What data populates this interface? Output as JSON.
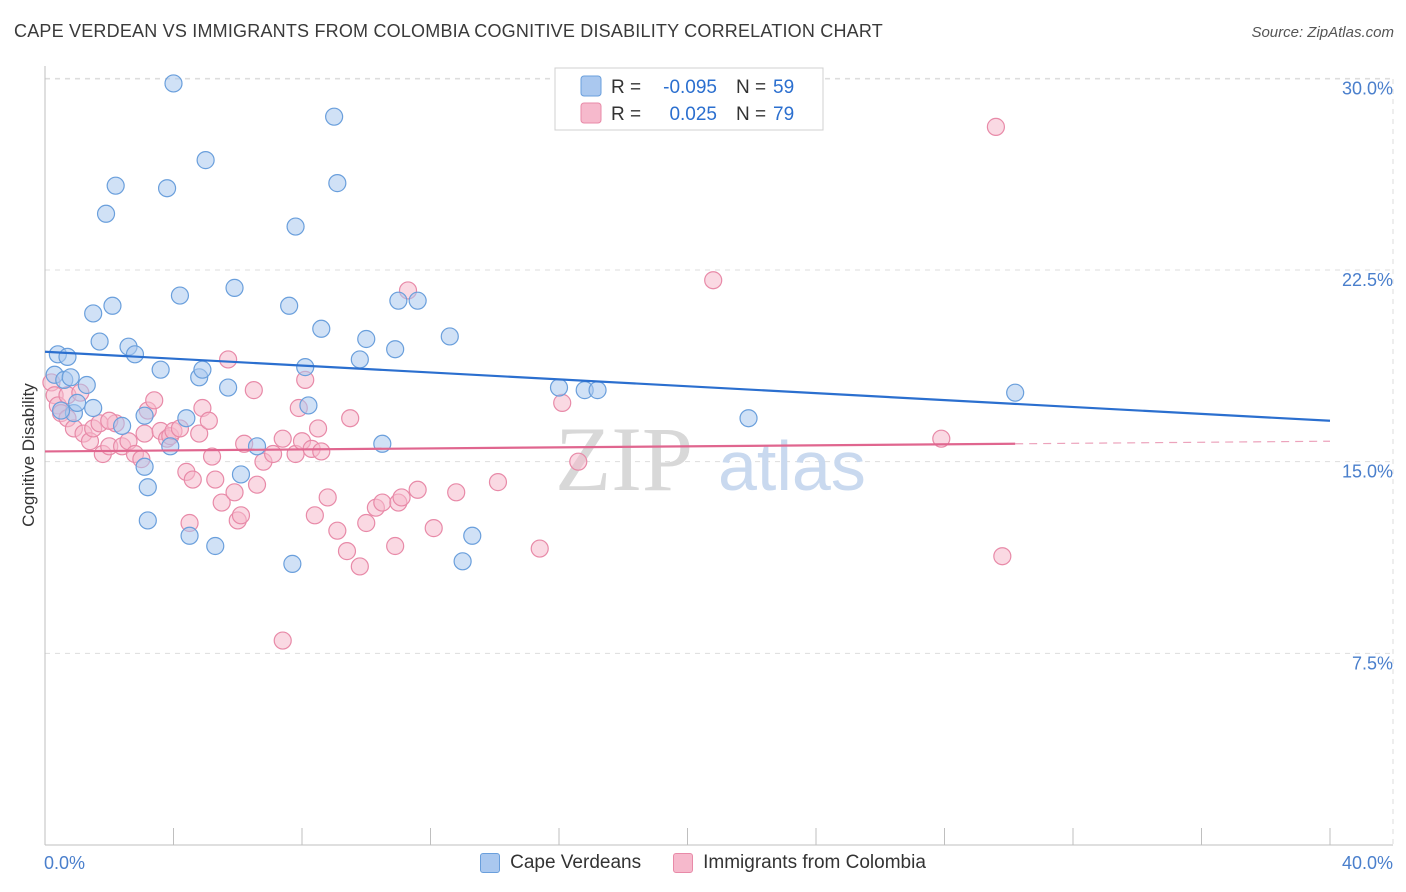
{
  "title": "CAPE VERDEAN VS IMMIGRANTS FROM COLOMBIA COGNITIVE DISABILITY CORRELATION CHART",
  "source": "Source: ZipAtlas.com",
  "colors": {
    "blue_fill": "#aac8ef",
    "blue_stroke": "#6a9fdc",
    "blue_line": "#2b6fcf",
    "pink_fill": "#f6b9cc",
    "pink_stroke": "#e88aa8",
    "pink_line": "#e0668f",
    "tick_label": "#4a7fcc",
    "grid": "#dddddd"
  },
  "legend": {
    "rows": [
      {
        "r_label": "R =",
        "r_value": "-0.095",
        "n_label": "N =",
        "n_value": "59"
      },
      {
        "r_label": "R =",
        "r_value": "0.025",
        "n_label": "N =",
        "n_value": "79"
      }
    ]
  },
  "bottom_legend": {
    "series1": "Cape Verdeans",
    "series2": "Immigrants from Colombia"
  },
  "watermark": {
    "zip": "ZIP",
    "atlas": "atlas"
  },
  "chart_data": {
    "type": "scatter",
    "title": "CAPE VERDEAN VS IMMIGRANTS FROM COLOMBIA COGNITIVE DISABILITY CORRELATION CHART",
    "xlabel": "",
    "ylabel": "Cognitive Disability",
    "xlim": [
      0,
      40
    ],
    "ylim": [
      0,
      31
    ],
    "x_tick_labels": [
      "0.0%",
      "40.0%"
    ],
    "y_ticks": [
      7.5,
      15.0,
      22.5,
      30.0
    ],
    "y_tick_labels": [
      "7.5%",
      "15.0%",
      "22.5%",
      "30.0%"
    ],
    "series": [
      {
        "name": "Cape Verdeans",
        "r": -0.095,
        "n": 59,
        "trend": {
          "x": [
            0,
            40
          ],
          "y": [
            19.3,
            16.6
          ]
        },
        "points": [
          [
            0.3,
            18.4
          ],
          [
            0.4,
            19.2
          ],
          [
            0.6,
            18.2
          ],
          [
            0.7,
            19.1
          ],
          [
            0.8,
            18.3
          ],
          [
            0.9,
            16.9
          ],
          [
            1.0,
            17.3
          ],
          [
            1.3,
            18.0
          ],
          [
            1.5,
            17.1
          ],
          [
            1.5,
            20.8
          ],
          [
            1.7,
            19.7
          ],
          [
            1.9,
            24.7
          ],
          [
            2.1,
            21.1
          ],
          [
            2.2,
            25.8
          ],
          [
            2.4,
            16.4
          ],
          [
            2.6,
            19.5
          ],
          [
            2.8,
            19.2
          ],
          [
            3.1,
            16.8
          ],
          [
            3.2,
            14.0
          ],
          [
            3.2,
            12.7
          ],
          [
            3.6,
            18.6
          ],
          [
            3.8,
            25.7
          ],
          [
            3.9,
            15.6
          ],
          [
            4.0,
            29.8
          ],
          [
            4.2,
            21.5
          ],
          [
            4.4,
            16.7
          ],
          [
            4.5,
            12.1
          ],
          [
            4.8,
            18.3
          ],
          [
            4.9,
            18.6
          ],
          [
            5.0,
            26.8
          ],
          [
            5.3,
            11.7
          ],
          [
            5.7,
            17.9
          ],
          [
            5.9,
            21.8
          ],
          [
            6.1,
            14.5
          ],
          [
            6.6,
            15.6
          ],
          [
            7.6,
            21.1
          ],
          [
            7.7,
            11.0
          ],
          [
            7.8,
            24.2
          ],
          [
            8.1,
            18.7
          ],
          [
            8.2,
            17.2
          ],
          [
            8.6,
            20.2
          ],
          [
            9.0,
            28.5
          ],
          [
            9.1,
            25.9
          ],
          [
            9.8,
            19.0
          ],
          [
            10.0,
            19.8
          ],
          [
            10.5,
            15.7
          ],
          [
            10.9,
            19.4
          ],
          [
            11.0,
            21.3
          ],
          [
            11.6,
            21.3
          ],
          [
            12.6,
            19.9
          ],
          [
            13.0,
            11.1
          ],
          [
            13.3,
            12.1
          ],
          [
            16.0,
            17.9
          ],
          [
            16.8,
            17.8
          ],
          [
            17.2,
            17.8
          ],
          [
            21.9,
            16.7
          ],
          [
            30.2,
            17.7
          ],
          [
            0.5,
            17.0
          ],
          [
            3.1,
            14.8
          ]
        ]
      },
      {
        "name": "Immigrants from Colombia",
        "r": 0.025,
        "n": 79,
        "trend": {
          "x": [
            0,
            30.2
          ],
          "y": [
            15.4,
            15.7
          ]
        },
        "trend_dashed": {
          "x": [
            30.2,
            40
          ],
          "y": [
            15.7,
            15.8
          ]
        },
        "points": [
          [
            0.2,
            18.1
          ],
          [
            0.3,
            17.6
          ],
          [
            0.4,
            17.2
          ],
          [
            0.5,
            16.9
          ],
          [
            0.7,
            17.6
          ],
          [
            0.7,
            16.7
          ],
          [
            0.9,
            16.3
          ],
          [
            1.1,
            17.7
          ],
          [
            1.2,
            16.1
          ],
          [
            1.4,
            15.8
          ],
          [
            1.5,
            16.3
          ],
          [
            1.7,
            16.5
          ],
          [
            1.8,
            15.3
          ],
          [
            2.0,
            15.6
          ],
          [
            2.2,
            16.5
          ],
          [
            2.4,
            15.6
          ],
          [
            2.6,
            15.8
          ],
          [
            2.8,
            15.3
          ],
          [
            3.0,
            15.1
          ],
          [
            3.1,
            16.1
          ],
          [
            3.2,
            17.0
          ],
          [
            3.4,
            17.4
          ],
          [
            3.6,
            16.2
          ],
          [
            3.8,
            15.9
          ],
          [
            3.9,
            16.0
          ],
          [
            4.0,
            16.2
          ],
          [
            4.2,
            16.3
          ],
          [
            4.4,
            14.6
          ],
          [
            4.5,
            12.6
          ],
          [
            4.6,
            14.3
          ],
          [
            4.8,
            16.1
          ],
          [
            4.9,
            17.1
          ],
          [
            5.1,
            16.6
          ],
          [
            5.2,
            15.2
          ],
          [
            5.3,
            14.3
          ],
          [
            5.5,
            13.4
          ],
          [
            5.7,
            19.0
          ],
          [
            5.9,
            13.8
          ],
          [
            6.0,
            12.7
          ],
          [
            6.1,
            12.9
          ],
          [
            6.2,
            15.7
          ],
          [
            6.5,
            17.8
          ],
          [
            6.6,
            14.1
          ],
          [
            6.8,
            15.0
          ],
          [
            7.1,
            15.3
          ],
          [
            7.4,
            15.9
          ],
          [
            7.4,
            8.0
          ],
          [
            7.8,
            15.3
          ],
          [
            7.9,
            17.1
          ],
          [
            8.0,
            15.8
          ],
          [
            8.1,
            18.2
          ],
          [
            8.3,
            15.5
          ],
          [
            8.4,
            12.9
          ],
          [
            8.5,
            16.3
          ],
          [
            8.6,
            15.4
          ],
          [
            8.8,
            13.6
          ],
          [
            9.1,
            12.3
          ],
          [
            9.4,
            11.5
          ],
          [
            9.5,
            16.7
          ],
          [
            9.8,
            10.9
          ],
          [
            10.0,
            12.6
          ],
          [
            10.3,
            13.2
          ],
          [
            10.5,
            13.4
          ],
          [
            10.9,
            11.7
          ],
          [
            11.0,
            13.4
          ],
          [
            11.1,
            13.6
          ],
          [
            11.3,
            21.7
          ],
          [
            11.6,
            13.9
          ],
          [
            12.1,
            12.4
          ],
          [
            12.8,
            13.8
          ],
          [
            14.1,
            14.2
          ],
          [
            15.4,
            11.6
          ],
          [
            16.1,
            17.3
          ],
          [
            16.6,
            15.0
          ],
          [
            20.8,
            22.1
          ],
          [
            27.9,
            15.9
          ],
          [
            29.6,
            28.1
          ],
          [
            29.8,
            11.3
          ],
          [
            2.0,
            16.6
          ]
        ]
      }
    ]
  }
}
